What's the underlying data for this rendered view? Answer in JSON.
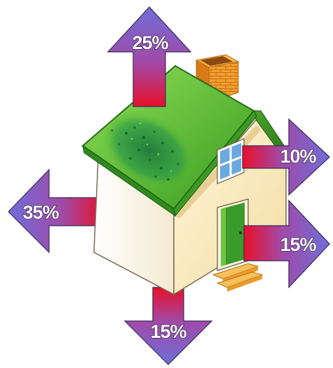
{
  "diagram": {
    "labels": {
      "roof": "25%",
      "left_wall": "35%",
      "window": "10%",
      "door": "15%",
      "floor": "15%"
    },
    "colors": {
      "arrow_tip": "#6f6fd8",
      "arrow_mid": "#a04aa8",
      "arrow_base": "#e8102a",
      "roof": "#5fbf2a",
      "wall": "#fbf3d8",
      "chimney": "#f09a2a",
      "door": "#3a9a2a",
      "window_glass": "#6aa8e0"
    },
    "icons": [
      "house-icon",
      "chimney-icon",
      "window-icon",
      "door-icon",
      "arrow-icon"
    ]
  }
}
